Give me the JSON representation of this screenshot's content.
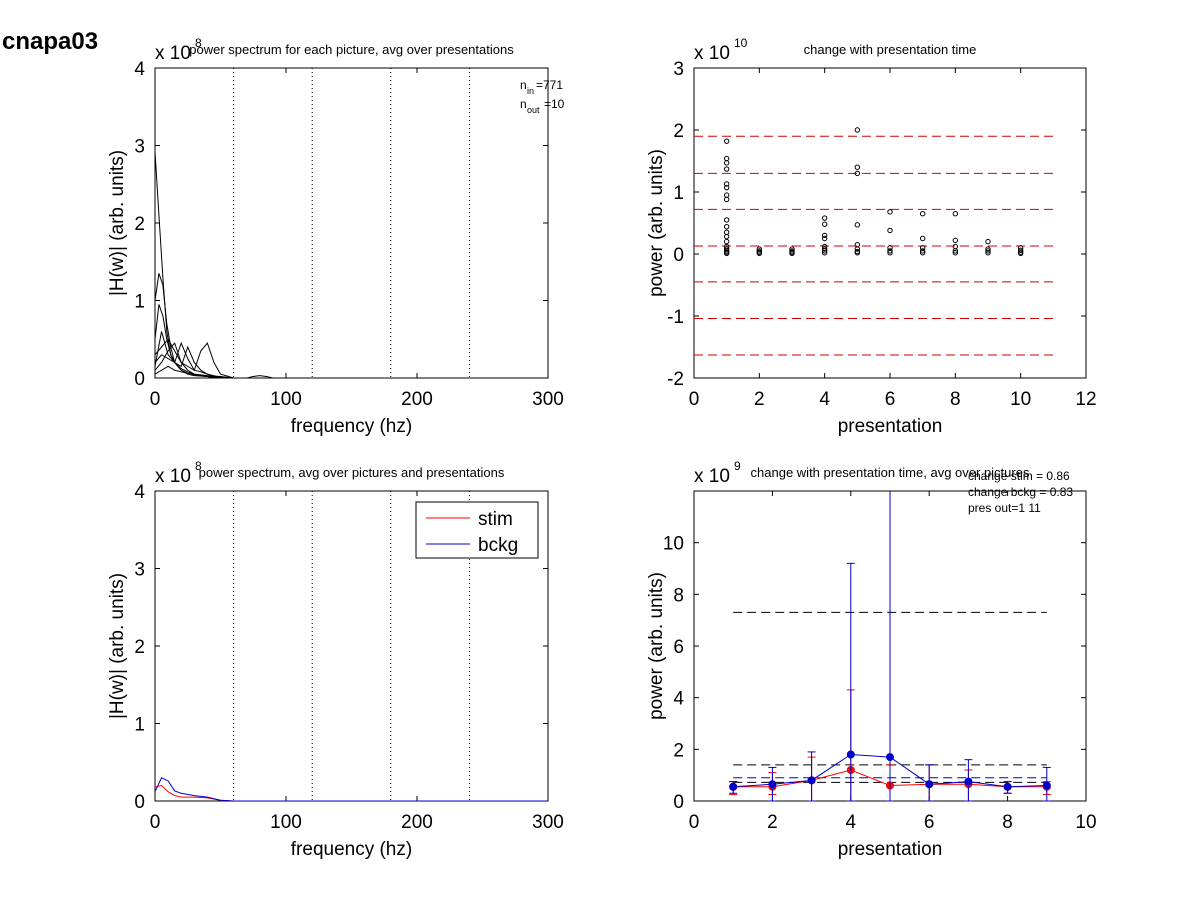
{
  "figure_title": "cnapa03",
  "chart_data": [
    {
      "id": "tl",
      "type": "line",
      "title": "power spectrum for each picture, avg over presentations",
      "xlabel": "frequency (hz)",
      "ylabel": "|H(w)| (arb. units)",
      "xlim": [
        0,
        300
      ],
      "ylim": [
        0,
        4
      ],
      "y_exponent": "8",
      "xticks": [
        0,
        100,
        200,
        300
      ],
      "yticks": [
        0,
        1,
        2,
        3,
        4
      ],
      "vlines_dotted": [
        60,
        120,
        180,
        240,
        300
      ],
      "annotation": {
        "n_in_label": "n",
        "n_in_sub": "in",
        "n_in_value": "=771",
        "n_out_label": "n",
        "n_out_sub": "out",
        "n_out_value": "=10"
      },
      "series": [
        {
          "x": [
            0,
            3,
            6,
            9,
            12,
            15,
            20,
            25,
            30,
            40,
            50,
            60,
            80,
            300
          ],
          "values": [
            2.92,
            2.1,
            1.3,
            0.6,
            0.3,
            0.2,
            0.12,
            0.08,
            0.05,
            0.03,
            0.02,
            0,
            0,
            0
          ]
        },
        {
          "x": [
            0,
            3,
            6,
            9,
            12,
            15,
            20,
            25,
            30,
            40,
            50,
            60,
            300
          ],
          "values": [
            1.0,
            1.35,
            1.2,
            0.7,
            0.4,
            0.2,
            0.1,
            0.06,
            0.04,
            0.02,
            0.01,
            0,
            0
          ]
        },
        {
          "x": [
            0,
            3,
            6,
            9,
            12,
            15,
            20,
            25,
            30,
            40,
            50,
            60,
            300
          ],
          "values": [
            0.5,
            0.95,
            0.8,
            0.5,
            0.3,
            0.2,
            0.1,
            0.05,
            0.03,
            0.02,
            0.01,
            0,
            0
          ]
        },
        {
          "x": [
            0,
            5,
            10,
            15,
            20,
            25,
            30,
            35,
            40,
            45,
            50,
            60,
            300
          ],
          "values": [
            0.3,
            0.4,
            0.5,
            0.35,
            0.2,
            0.15,
            0.1,
            0.35,
            0.45,
            0.2,
            0.05,
            0,
            0
          ]
        },
        {
          "x": [
            0,
            5,
            10,
            15,
            20,
            25,
            30,
            35,
            40,
            45,
            50,
            60,
            300
          ],
          "values": [
            0.2,
            0.3,
            0.25,
            0.2,
            0.15,
            0.4,
            0.2,
            0.1,
            0.05,
            0.03,
            0.01,
            0,
            0
          ]
        },
        {
          "x": [
            0,
            5,
            10,
            15,
            20,
            25,
            30,
            35,
            40,
            45,
            50,
            60,
            300
          ],
          "values": [
            0.15,
            0.6,
            0.3,
            0.2,
            0.45,
            0.25,
            0.1,
            0.08,
            0.05,
            0.02,
            0.01,
            0,
            0
          ]
        },
        {
          "x": [
            0,
            5,
            10,
            15,
            20,
            25,
            30,
            35,
            40,
            45,
            50,
            60,
            300
          ],
          "values": [
            0.1,
            0.2,
            0.35,
            0.45,
            0.2,
            0.1,
            0.05,
            0.03,
            0.02,
            0.01,
            0,
            0,
            0
          ]
        },
        {
          "x": [
            0,
            5,
            10,
            15,
            20,
            25,
            30,
            35,
            40,
            45,
            50,
            60,
            300
          ],
          "values": [
            0.05,
            0.1,
            0.15,
            0.1,
            0.08,
            0.06,
            0.04,
            0.03,
            0.02,
            0.01,
            0,
            0,
            0
          ]
        },
        {
          "x": [
            70,
            75,
            80,
            85,
            90
          ],
          "values": [
            0,
            0.02,
            0.03,
            0.02,
            0
          ]
        }
      ]
    },
    {
      "id": "tr",
      "type": "scatter",
      "title": "change with presentation time",
      "xlabel": "presentation",
      "ylabel": "power (arb. units)",
      "xlim": [
        0,
        12
      ],
      "ylim": [
        -2,
        3
      ],
      "y_exponent": "10",
      "xticks": [
        0,
        2,
        4,
        6,
        8,
        10,
        12
      ],
      "yticks": [
        -2,
        -1,
        0,
        1,
        2,
        3
      ],
      "hlines_dashed": {
        "color": "#d00000",
        "y": [
          1.9,
          1.3,
          0.72,
          0.13,
          -0.45,
          -1.04,
          -1.63
        ],
        "x_range": [
          0,
          11
        ]
      },
      "points": [
        {
          "x": 1,
          "y": [
            1.82,
            1.54,
            1.47,
            1.37,
            1.13,
            1.07,
            0.95,
            0.88,
            0.55,
            0.44,
            0.35,
            0.28,
            0.2,
            0.12,
            0.08,
            0.05,
            0.03,
            0.01
          ]
        },
        {
          "x": 2,
          "y": [
            0.08,
            0.05,
            0.03,
            0.01
          ]
        },
        {
          "x": 3,
          "y": [
            0.08,
            0.05,
            0.03,
            0.01
          ]
        },
        {
          "x": 4,
          "y": [
            0.58,
            0.48,
            0.3,
            0.25,
            0.12,
            0.08,
            0.05,
            0.02
          ]
        },
        {
          "x": 5,
          "y": [
            2.0,
            1.4,
            1.3,
            0.47,
            0.15,
            0.08,
            0.04,
            0.02
          ]
        },
        {
          "x": 6,
          "y": [
            0.68,
            0.38,
            0.1,
            0.05,
            0.02
          ]
        },
        {
          "x": 7,
          "y": [
            0.65,
            0.25,
            0.1,
            0.05,
            0.02
          ]
        },
        {
          "x": 8,
          "y": [
            0.65,
            0.22,
            0.12,
            0.05,
            0.02
          ]
        },
        {
          "x": 9,
          "y": [
            0.2,
            0.08,
            0.05,
            0.02
          ]
        },
        {
          "x": 10,
          "y": [
            0.1,
            0.06,
            0.03,
            0.01
          ]
        }
      ]
    },
    {
      "id": "bl",
      "type": "line",
      "title": "power spectrum, avg over pictures and presentations",
      "xlabel": "frequency (hz)",
      "ylabel": "|H(w)| (arb. units)",
      "xlim": [
        0,
        300
      ],
      "ylim": [
        0,
        4
      ],
      "y_exponent": "8",
      "xticks": [
        0,
        100,
        200,
        300
      ],
      "yticks": [
        0,
        1,
        2,
        3,
        4
      ],
      "vlines_dotted": [
        60,
        120,
        180,
        240,
        300
      ],
      "legend": {
        "placement": "top-right",
        "entries": [
          "stim",
          "bckg"
        ]
      },
      "series": [
        {
          "name": "stim",
          "color": "#ff0000",
          "x": [
            0,
            5,
            10,
            15,
            20,
            30,
            40,
            50,
            60,
            300
          ],
          "values": [
            0.18,
            0.2,
            0.12,
            0.07,
            0.05,
            0.05,
            0.04,
            0.01,
            0,
            0
          ]
        },
        {
          "name": "bckg",
          "color": "#0000cc",
          "x": [
            0,
            5,
            10,
            15,
            20,
            30,
            40,
            50,
            60,
            300
          ],
          "values": [
            0.12,
            0.3,
            0.26,
            0.13,
            0.1,
            0.07,
            0.05,
            0.01,
            0,
            0
          ]
        }
      ]
    },
    {
      "id": "br",
      "type": "line",
      "title": "change with presentation time, avg over pictures",
      "xlabel": "presentation",
      "ylabel": "power (arb. units)",
      "xlim": [
        0,
        10
      ],
      "ylim": [
        0,
        12
      ],
      "y_exponent": "9",
      "xticks": [
        0,
        2,
        4,
        6,
        8,
        10
      ],
      "yticks": [
        0,
        2,
        4,
        6,
        8,
        10
      ],
      "annotations": [
        "change stim = 0.86",
        "change bckg = 0.83",
        "pres out=1 11"
      ],
      "hlines_dashed": [
        {
          "color": "#000000",
          "y": 7.3,
          "x_range": [
            1,
            9
          ]
        },
        {
          "color": "#000000",
          "y": 1.4,
          "x_range": [
            1,
            9
          ]
        },
        {
          "color": "#000000",
          "y": 0.72,
          "x_range": [
            1,
            9
          ]
        },
        {
          "color": "#0000cc",
          "y": 0.9,
          "x_range": [
            1,
            9
          ]
        }
      ],
      "x": [
        1,
        2,
        3,
        4,
        5,
        6,
        7,
        8,
        9
      ],
      "series": [
        {
          "name": "stim",
          "color": "#ff0000",
          "values": [
            0.55,
            0.55,
            0.8,
            1.2,
            0.6,
            0.65,
            0.65,
            0.55,
            0.55
          ],
          "err_low": [
            0.25,
            0.25,
            0.0,
            0.0,
            0.0,
            0.0,
            0.0,
            0.3,
            0.25
          ],
          "err_high": [
            0.75,
            1.1,
            1.7,
            4.3,
            1.4,
            1.4,
            1.2,
            0.75,
            0.75
          ]
        },
        {
          "name": "bckg",
          "color": "#0000cc",
          "values": [
            0.55,
            0.65,
            0.8,
            1.8,
            1.7,
            0.65,
            0.75,
            0.55,
            0.6
          ],
          "err_low": [
            0.3,
            0.0,
            0.0,
            0.0,
            0.0,
            0.0,
            0.0,
            0.3,
            0.0
          ],
          "err_high": [
            0.75,
            1.3,
            1.9,
            9.2,
            12,
            1.4,
            1.6,
            0.75,
            1.3
          ]
        }
      ]
    }
  ]
}
